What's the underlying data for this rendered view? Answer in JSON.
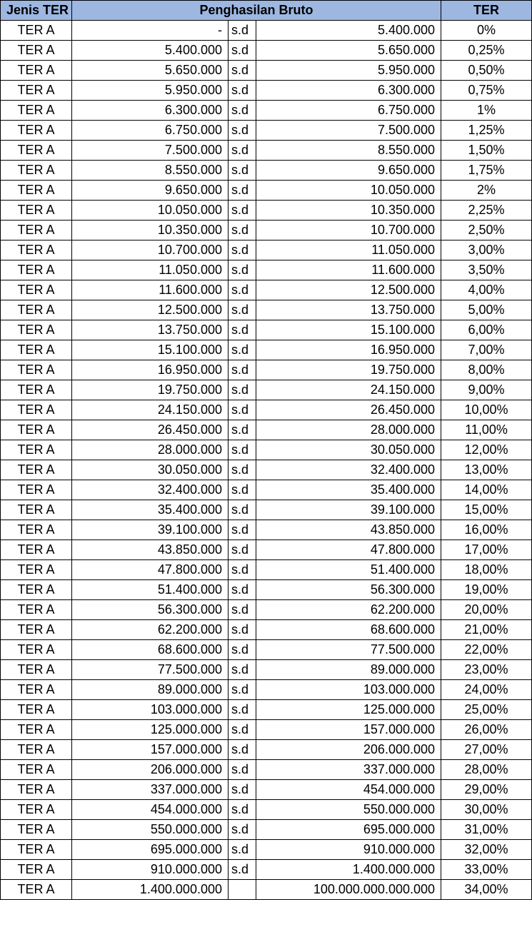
{
  "headers": {
    "type": "Jenis TER",
    "income": "Penghasilan Bruto",
    "rate": "TER"
  },
  "rows": [
    {
      "type": "TER A",
      "from": "-",
      "sd": "s.d",
      "to": "5.400.000",
      "rate": "0%"
    },
    {
      "type": "TER A",
      "from": "5.400.000",
      "sd": "s.d",
      "to": "5.650.000",
      "rate": "0,25%"
    },
    {
      "type": "TER A",
      "from": "5.650.000",
      "sd": "s.d",
      "to": "5.950.000",
      "rate": "0,50%"
    },
    {
      "type": "TER A",
      "from": "5.950.000",
      "sd": "s.d",
      "to": "6.300.000",
      "rate": "0,75%"
    },
    {
      "type": "TER A",
      "from": "6.300.000",
      "sd": "s.d",
      "to": "6.750.000",
      "rate": "1%"
    },
    {
      "type": "TER A",
      "from": "6.750.000",
      "sd": "s.d",
      "to": "7.500.000",
      "rate": "1,25%"
    },
    {
      "type": "TER A",
      "from": "7.500.000",
      "sd": "s.d",
      "to": "8.550.000",
      "rate": "1,50%"
    },
    {
      "type": "TER A",
      "from": "8.550.000",
      "sd": "s.d",
      "to": "9.650.000",
      "rate": "1,75%"
    },
    {
      "type": "TER A",
      "from": "9.650.000",
      "sd": "s.d",
      "to": "10.050.000",
      "rate": "2%"
    },
    {
      "type": "TER A",
      "from": "10.050.000",
      "sd": "s.d",
      "to": "10.350.000",
      "rate": "2,25%"
    },
    {
      "type": "TER A",
      "from": "10.350.000",
      "sd": "s.d",
      "to": "10.700.000",
      "rate": "2,50%"
    },
    {
      "type": "TER A",
      "from": "10.700.000",
      "sd": "s.d",
      "to": "11.050.000",
      "rate": "3,00%"
    },
    {
      "type": "TER A",
      "from": "11.050.000",
      "sd": "s.d",
      "to": "11.600.000",
      "rate": "3,50%"
    },
    {
      "type": "TER A",
      "from": "11.600.000",
      "sd": "s.d",
      "to": "12.500.000",
      "rate": "4,00%"
    },
    {
      "type": "TER A",
      "from": "12.500.000",
      "sd": "s.d",
      "to": "13.750.000",
      "rate": "5,00%"
    },
    {
      "type": "TER A",
      "from": "13.750.000",
      "sd": "s.d",
      "to": "15.100.000",
      "rate": "6,00%"
    },
    {
      "type": "TER A",
      "from": "15.100.000",
      "sd": "s.d",
      "to": "16.950.000",
      "rate": "7,00%"
    },
    {
      "type": "TER A",
      "from": "16.950.000",
      "sd": "s.d",
      "to": "19.750.000",
      "rate": "8,00%"
    },
    {
      "type": "TER A",
      "from": "19.750.000",
      "sd": "s.d",
      "to": "24.150.000",
      "rate": "9,00%"
    },
    {
      "type": "TER A",
      "from": "24.150.000",
      "sd": "s.d",
      "to": "26.450.000",
      "rate": "10,00%"
    },
    {
      "type": "TER A",
      "from": "26.450.000",
      "sd": "s.d",
      "to": "28.000.000",
      "rate": "11,00%"
    },
    {
      "type": "TER A",
      "from": "28.000.000",
      "sd": "s.d",
      "to": "30.050.000",
      "rate": "12,00%"
    },
    {
      "type": "TER A",
      "from": "30.050.000",
      "sd": "s.d",
      "to": "32.400.000",
      "rate": "13,00%"
    },
    {
      "type": "TER A",
      "from": "32.400.000",
      "sd": "s.d",
      "to": "35.400.000",
      "rate": "14,00%"
    },
    {
      "type": "TER A",
      "from": "35.400.000",
      "sd": "s.d",
      "to": "39.100.000",
      "rate": "15,00%"
    },
    {
      "type": "TER A",
      "from": "39.100.000",
      "sd": "s.d",
      "to": "43.850.000",
      "rate": "16,00%"
    },
    {
      "type": "TER A",
      "from": "43.850.000",
      "sd": "s.d",
      "to": "47.800.000",
      "rate": "17,00%"
    },
    {
      "type": "TER A",
      "from": "47.800.000",
      "sd": "s.d",
      "to": "51.400.000",
      "rate": "18,00%"
    },
    {
      "type": "TER A",
      "from": "51.400.000",
      "sd": "s.d",
      "to": "56.300.000",
      "rate": "19,00%"
    },
    {
      "type": "TER A",
      "from": "56.300.000",
      "sd": "s.d",
      "to": "62.200.000",
      "rate": "20,00%"
    },
    {
      "type": "TER A",
      "from": "62.200.000",
      "sd": "s.d",
      "to": "68.600.000",
      "rate": "21,00%"
    },
    {
      "type": "TER A",
      "from": "68.600.000",
      "sd": "s.d",
      "to": "77.500.000",
      "rate": "22,00%"
    },
    {
      "type": "TER A",
      "from": "77.500.000",
      "sd": "s.d",
      "to": "89.000.000",
      "rate": "23,00%"
    },
    {
      "type": "TER A",
      "from": "89.000.000",
      "sd": "s.d",
      "to": "103.000.000",
      "rate": "24,00%"
    },
    {
      "type": "TER A",
      "from": "103.000.000",
      "sd": "s.d",
      "to": "125.000.000",
      "rate": "25,00%"
    },
    {
      "type": "TER A",
      "from": "125.000.000",
      "sd": "s.d",
      "to": "157.000.000",
      "rate": "26,00%"
    },
    {
      "type": "TER A",
      "from": "157.000.000",
      "sd": "s.d",
      "to": "206.000.000",
      "rate": "27,00%"
    },
    {
      "type": "TER A",
      "from": "206.000.000",
      "sd": "s.d",
      "to": "337.000.000",
      "rate": "28,00%"
    },
    {
      "type": "TER A",
      "from": "337.000.000",
      "sd": "s.d",
      "to": "454.000.000",
      "rate": "29,00%"
    },
    {
      "type": "TER A",
      "from": "454.000.000",
      "sd": "s.d",
      "to": "550.000.000",
      "rate": "30,00%"
    },
    {
      "type": "TER A",
      "from": "550.000.000",
      "sd": "s.d",
      "to": "695.000.000",
      "rate": "31,00%"
    },
    {
      "type": "TER A",
      "from": "695.000.000",
      "sd": "s.d",
      "to": "910.000.000",
      "rate": "32,00%"
    },
    {
      "type": "TER A",
      "from": "910.000.000",
      "sd": "s.d",
      "to": "1.400.000.000",
      "rate": "33,00%"
    },
    {
      "type": "TER A",
      "from": "1.400.000.000",
      "sd": "",
      "to": "100.000.000.000.000",
      "rate": "34,00%"
    }
  ]
}
